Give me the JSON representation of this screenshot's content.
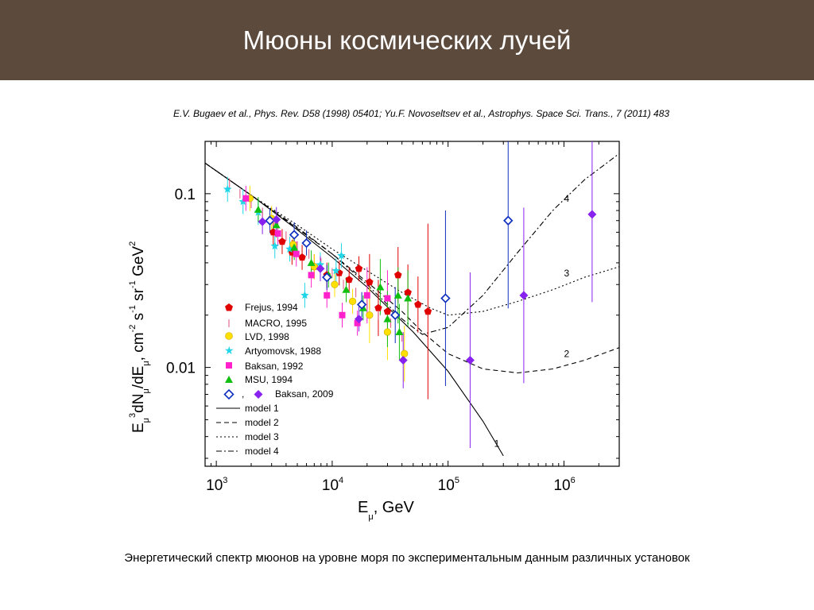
{
  "header": {
    "title": "Мюоны космических лучей"
  },
  "reference": "E.V. Bugaev et al., Phys. Rev. D58 (1998) 05401; Yu.F. Novoseltsev et al., Astrophys. Space Sci. Trans., 7 (2011) 483",
  "caption": "Энергетический спектр мюонов на уровне моря по экспериментальным данным различных установок",
  "colors": {
    "header_bg": "#5c4a3d",
    "frejus": "#e00000",
    "macro": "#e0507a",
    "lvd": "#ffe000",
    "artyomovsk": "#22d6e8",
    "baksan1992": "#ff22cc",
    "msu": "#10c010",
    "baksan2009_open": "#1030c0",
    "baksan2009_filled": "#8822ee"
  },
  "chart_data": {
    "type": "scatter",
    "x_scale": "log",
    "y_scale": "log",
    "xlim": [
      800,
      3000000
    ],
    "ylim": [
      0.0027,
      0.2
    ],
    "xlabel_main": "E",
    "xlabel_sub": "μ",
    "xlabel_rest": ", GeV",
    "ylabel_parts": {
      "e": "E",
      "e_sub": "μ",
      "e_sup": "3",
      "dn": "dN",
      "dn_sub": "μ",
      "mid": "/dE",
      "unit_a": ", cm",
      "unit_a_sup": "-2",
      "unit_b": " s",
      "unit_b_sup": "-1",
      "unit_c": " sr",
      "unit_c_sup": "-1",
      "unit_d": " GeV",
      "unit_d_sup": "2"
    },
    "x_ticks": [
      {
        "base": "10",
        "exp": "3",
        "value": 1000
      },
      {
        "base": "10",
        "exp": "4",
        "value": 10000
      },
      {
        "base": "10",
        "exp": "5",
        "value": 100000
      },
      {
        "base": "10",
        "exp": "6",
        "value": 1000000
      }
    ],
    "y_ticks": [
      {
        "label": "0.1",
        "value": 0.1
      },
      {
        "label": "0.01",
        "value": 0.01
      }
    ],
    "grid": false,
    "legend_placement": "lower-left",
    "series": [
      {
        "name": "Frejus, 1994",
        "marker": "pentagon",
        "color": "#e00000",
        "points": [
          [
            3100,
            0.06
          ],
          [
            3700,
            0.053
          ],
          [
            4500,
            0.046
          ],
          [
            5500,
            0.043
          ],
          [
            7000,
            0.038
          ],
          [
            9000,
            0.034
          ],
          [
            11500,
            0.035
          ],
          [
            14000,
            0.032
          ],
          [
            17000,
            0.037
          ],
          [
            21000,
            0.031
          ],
          [
            25000,
            0.022
          ],
          [
            30000,
            0.021
          ],
          [
            37000,
            0.034
          ],
          [
            45000,
            0.027
          ],
          [
            55000,
            0.023
          ],
          [
            67000,
            0.021
          ]
        ]
      },
      {
        "name": "MACRO, 1995",
        "marker": "bar",
        "color": "#e0507a",
        "points": [
          [
            1300,
            0.115
          ],
          [
            1600,
            0.1
          ],
          [
            2000,
            0.088
          ],
          [
            2500,
            0.078
          ],
          [
            3200,
            0.068
          ],
          [
            4000,
            0.057
          ],
          [
            5000,
            0.05
          ],
          [
            6300,
            0.045
          ],
          [
            8000,
            0.04
          ],
          [
            10000,
            0.035
          ],
          [
            12500,
            0.03
          ],
          [
            16000,
            0.027
          ],
          [
            20000,
            0.023
          ],
          [
            25000,
            0.02
          ],
          [
            32000,
            0.018
          ],
          [
            40000,
            0.015
          ]
        ]
      },
      {
        "name": "LVD, 1998",
        "marker": "circle",
        "color": "#ffe000",
        "points": [
          [
            1950,
            0.094
          ],
          [
            3000,
            0.072
          ],
          [
            4600,
            0.051
          ],
          [
            7000,
            0.038
          ],
          [
            10500,
            0.03
          ],
          [
            15000,
            0.024
          ],
          [
            21000,
            0.02
          ],
          [
            30000,
            0.016
          ],
          [
            42000,
            0.012
          ]
        ]
      },
      {
        "name": "Artyomovsk, 1988",
        "marker": "star",
        "color": "#22d6e8",
        "points": [
          [
            1250,
            0.106
          ],
          [
            1700,
            0.09
          ],
          [
            2300,
            0.078
          ],
          [
            3200,
            0.05
          ],
          [
            4300,
            0.048
          ],
          [
            5800,
            0.026
          ],
          [
            7900,
            0.039
          ],
          [
            10800,
            0.036
          ],
          [
            12000,
            0.044
          ]
        ]
      },
      {
        "name": "Baksan, 1992",
        "marker": "square",
        "color": "#ff22cc",
        "points": [
          [
            1800,
            0.094
          ],
          [
            3400,
            0.059
          ],
          [
            4900,
            0.045
          ],
          [
            6600,
            0.034
          ],
          [
            9000,
            0.026
          ],
          [
            12200,
            0.02
          ],
          [
            16500,
            0.018
          ],
          [
            20000,
            0.026
          ],
          [
            30000,
            0.025
          ]
        ]
      },
      {
        "name": "MSU, 1994",
        "marker": "triangle",
        "color": "#10c010",
        "points": [
          [
            2300,
            0.081
          ],
          [
            3300,
            0.066
          ],
          [
            4700,
            0.049
          ],
          [
            6600,
            0.04
          ],
          [
            9300,
            0.034
          ],
          [
            13200,
            0.028
          ],
          [
            18500,
            0.022
          ],
          [
            26000,
            0.029
          ],
          [
            37000,
            0.026
          ],
          [
            45000,
            0.025
          ],
          [
            30000,
            0.019
          ],
          [
            38000,
            0.016
          ]
        ]
      },
      {
        "name": "Baksan, 2009",
        "marker": "diamond-open",
        "color": "#1030c0",
        "points": [
          [
            2900,
            0.07
          ],
          [
            4700,
            0.058
          ],
          [
            6000,
            0.052
          ],
          [
            9000,
            0.033
          ],
          [
            18000,
            0.023
          ],
          [
            35000,
            0.02
          ],
          [
            95000,
            0.025
          ],
          [
            330000,
            0.07
          ]
        ]
      },
      {
        "name": "Baksan, 2009",
        "marker": "diamond",
        "color": "#8822ee",
        "points": [
          [
            2500,
            0.069
          ],
          [
            3300,
            0.071
          ],
          [
            7900,
            0.037
          ],
          [
            17000,
            0.019
          ],
          [
            41000,
            0.011
          ],
          [
            155000,
            0.011
          ],
          [
            450000,
            0.026
          ],
          [
            1750000,
            0.076
          ]
        ]
      }
    ],
    "models": [
      {
        "name": "model 1",
        "dash": "",
        "label": "1",
        "points": [
          [
            800,
            0.15
          ],
          [
            2000,
            0.098
          ],
          [
            5000,
            0.062
          ],
          [
            10000,
            0.043
          ],
          [
            20000,
            0.029
          ],
          [
            50000,
            0.016
          ],
          [
            100000,
            0.0095
          ],
          [
            200000,
            0.0049
          ],
          [
            300000,
            0.0031
          ]
        ]
      },
      {
        "name": "model 2",
        "dash": "6,4",
        "label": "2",
        "points": [
          [
            800,
            0.15
          ],
          [
            2000,
            0.098
          ],
          [
            5000,
            0.063
          ],
          [
            10000,
            0.045
          ],
          [
            20000,
            0.031
          ],
          [
            40000,
            0.021
          ],
          [
            60000,
            0.016
          ],
          [
            100000,
            0.012
          ],
          [
            200000,
            0.0098
          ],
          [
            400000,
            0.0093
          ],
          [
            800000,
            0.0098
          ],
          [
            1500000,
            0.011
          ],
          [
            3000000,
            0.013
          ]
        ]
      },
      {
        "name": "model 3",
        "dash": "2,3",
        "label": "3",
        "points": [
          [
            800,
            0.15
          ],
          [
            2000,
            0.098
          ],
          [
            5000,
            0.066
          ],
          [
            10000,
            0.048
          ],
          [
            20000,
            0.036
          ],
          [
            40000,
            0.027
          ],
          [
            70000,
            0.022
          ],
          [
            100000,
            0.02
          ],
          [
            200000,
            0.021
          ],
          [
            400000,
            0.024
          ],
          [
            800000,
            0.028
          ],
          [
            1500000,
            0.033
          ],
          [
            3000000,
            0.038
          ]
        ]
      },
      {
        "name": "model 4",
        "dash": "7,3,2,3",
        "label": "4",
        "points": [
          [
            800,
            0.15
          ],
          [
            2000,
            0.098
          ],
          [
            5000,
            0.064
          ],
          [
            10000,
            0.045
          ],
          [
            20000,
            0.03
          ],
          [
            40000,
            0.019
          ],
          [
            60000,
            0.0155
          ],
          [
            100000,
            0.017
          ],
          [
            200000,
            0.026
          ],
          [
            400000,
            0.046
          ],
          [
            800000,
            0.08
          ],
          [
            1500000,
            0.12
          ],
          [
            3000000,
            0.17
          ]
        ]
      }
    ],
    "legend": {
      "frejus": "Frejus, 1994",
      "macro": "MACRO, 1995",
      "lvd": "LVD, 1998",
      "artyomovsk": "Artyomovsk, 1988",
      "baksan1992": "Baksan, 1992",
      "msu": "MSU, 1994",
      "baksan2009_sep": ",",
      "baksan2009": "Baksan, 2009",
      "model1": "model 1",
      "model2": "model 2",
      "model3": "model 3",
      "model4": "model 4"
    }
  }
}
